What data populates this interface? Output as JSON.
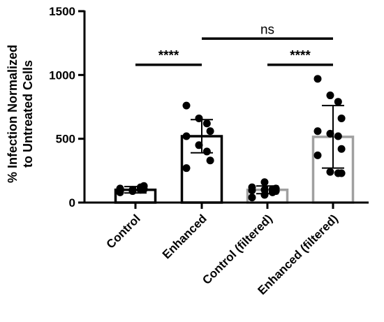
{
  "chart_data": {
    "type": "bar",
    "title": "",
    "xlabel": "",
    "ylabel_lines": [
      "% Infection Normalized",
      "to Untreated Cells"
    ],
    "ylim": [
      0,
      1500
    ],
    "yticks": [
      0,
      500,
      1000,
      1500
    ],
    "grid": false,
    "categories": [
      "Control",
      "Enhanced",
      "Control (filtered)",
      "Enhanced (filtered)"
    ],
    "bar_colors": [
      "#000000",
      "#000000",
      "#a0a0a0",
      "#a0a0a0"
    ],
    "means": [
      100,
      520,
      100,
      515
    ],
    "sd": [
      25,
      130,
      30,
      245
    ],
    "points": [
      [
        80,
        90,
        100,
        105,
        110,
        95,
        120,
        130,
        85,
        100
      ],
      [
        760,
        660,
        620,
        560,
        520,
        450,
        400,
        330,
        270
      ],
      [
        40,
        60,
        80,
        90,
        95,
        100,
        105,
        110,
        120,
        160
      ],
      [
        970,
        840,
        790,
        660,
        560,
        540,
        520,
        420,
        370,
        240,
        230,
        230
      ]
    ],
    "significance": [
      {
        "from": 0,
        "to": 1,
        "label": "****",
        "y": 1080
      },
      {
        "from": 1,
        "to": 3,
        "label": "ns",
        "y": 1285
      },
      {
        "from": 2,
        "to": 3,
        "label": "****",
        "y": 1080
      }
    ]
  }
}
